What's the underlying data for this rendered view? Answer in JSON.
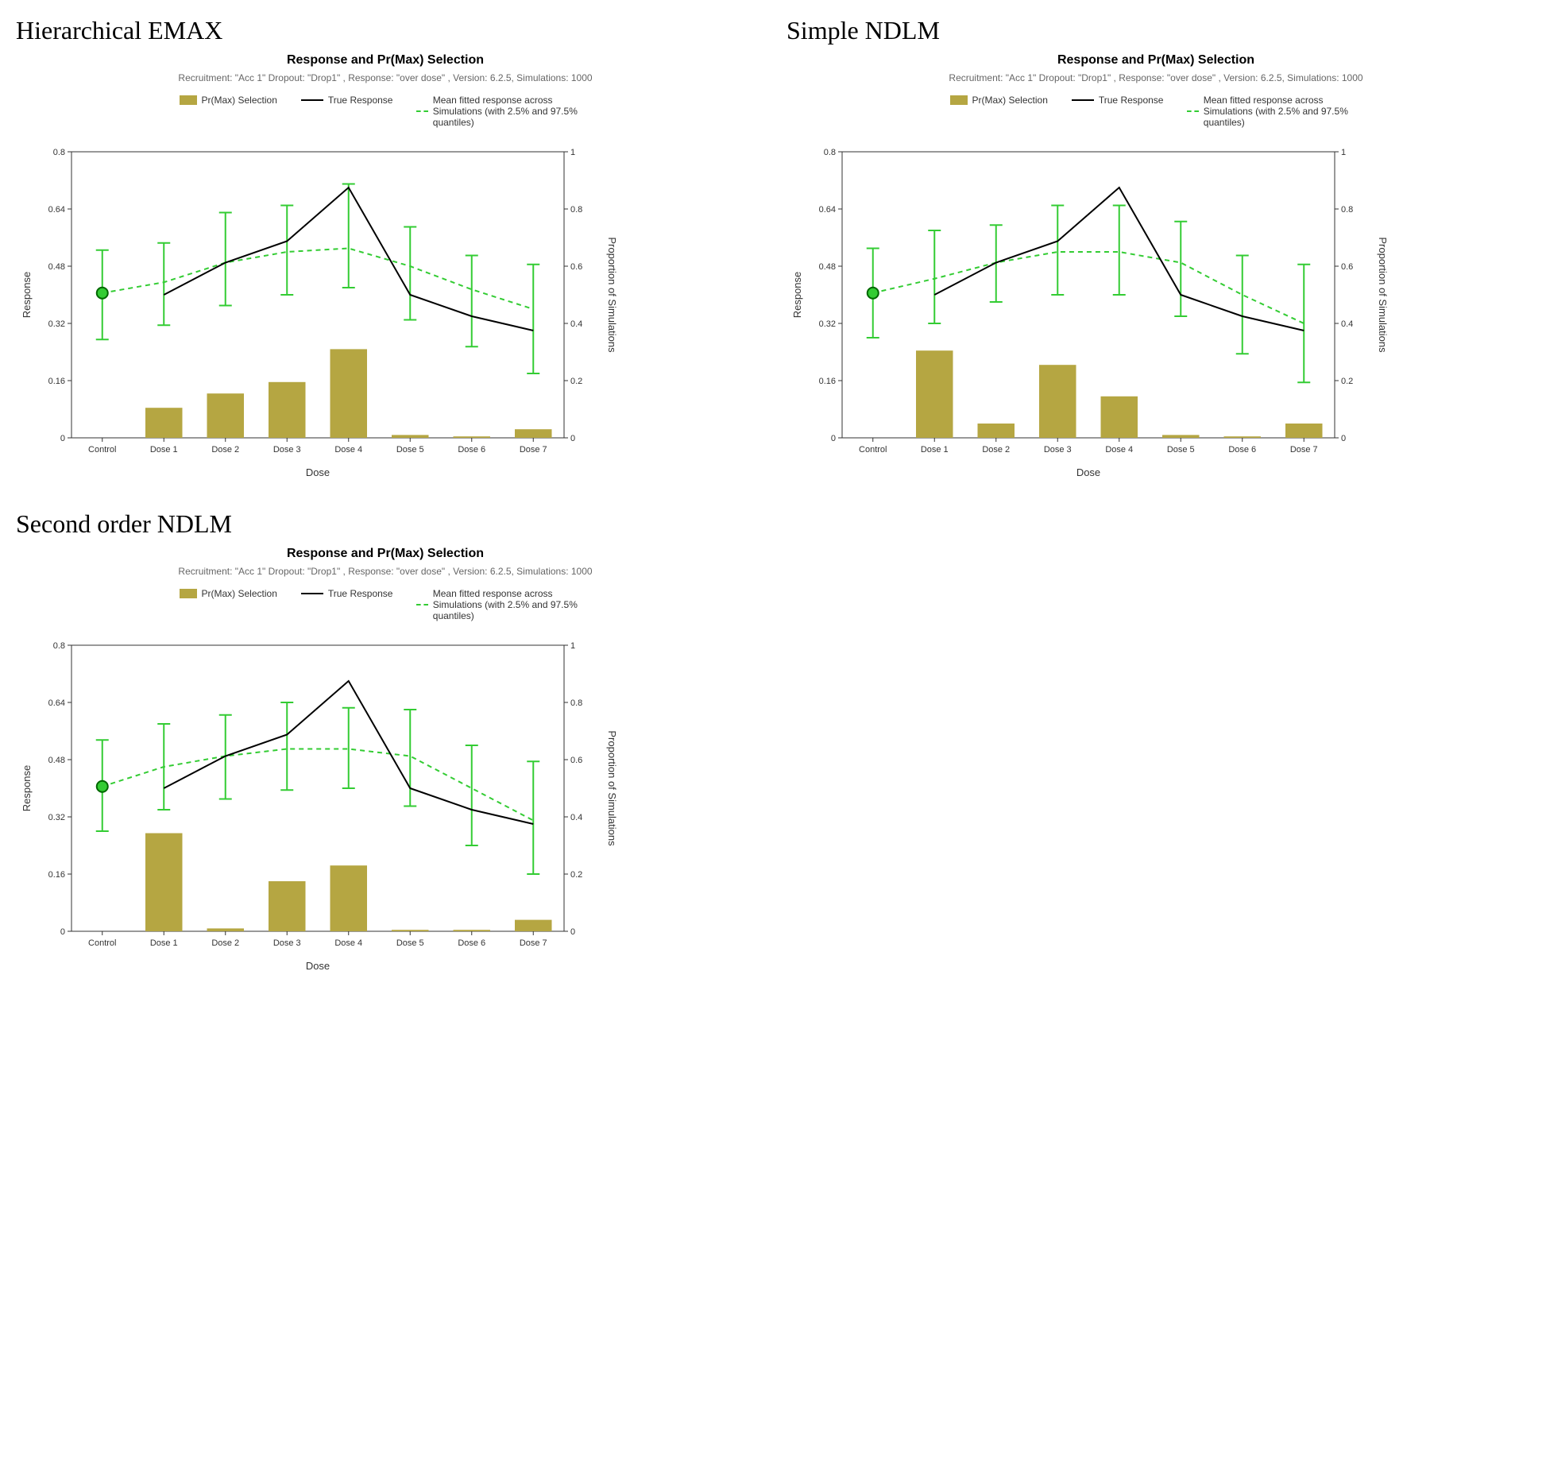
{
  "common": {
    "chart_title": "Response and Pr(Max) Selection",
    "subtitle": "Recruitment: \"Acc 1\" Dropout: \"Drop1\" , Response: \"over dose\" , Version: 6.2.5, Simulations: 1000",
    "legend": {
      "bar_label": "Pr(Max) Selection",
      "line_label": "True Response",
      "fitted_label": "Mean fitted response across Simulations (with 2.5% and 97.5% quantiles)"
    },
    "categories": [
      "Control",
      "Dose 1",
      "Dose 2",
      "Dose 3",
      "Dose 4",
      "Dose 5",
      "Dose 6",
      "Dose 7"
    ],
    "xlabel": "Dose",
    "ylabel_left": "Response",
    "ylabel_right": "Proportion of Simulations",
    "left_axis": {
      "min": 0,
      "max": 0.8,
      "ticks": [
        0,
        0.16,
        0.32,
        0.48,
        0.64,
        0.8
      ]
    },
    "right_axis": {
      "min": 0,
      "max": 1.0,
      "ticks": [
        0,
        0.2,
        0.4,
        0.6,
        0.8,
        1
      ]
    },
    "true_response": [
      null,
      0.4,
      0.49,
      0.55,
      0.7,
      0.4,
      0.34,
      0.3
    ],
    "control_point": 0.405,
    "colors": {
      "bar": "#b5a642",
      "true_line": "#000000",
      "fitted": "#33cc33",
      "control_fill": "#33cc33",
      "control_stroke": "#006600",
      "axis": "#333333",
      "grid": "#ffffff",
      "bg": "#ffffff",
      "text": "#333333",
      "subtitle": "#666666"
    },
    "fontsize": {
      "title": 16,
      "subtitle": 12,
      "legend": 12,
      "tick": 11,
      "axis_label": 13
    }
  },
  "panels": [
    {
      "id": "emax",
      "panel_title": "Hierarchical EMAX",
      "bar_values": [
        0,
        0.105,
        0.155,
        0.195,
        0.31,
        0.01,
        0.005,
        0.03
      ],
      "fitted_mean": [
        0.405,
        0.435,
        0.49,
        0.52,
        0.53,
        0.48,
        0.415,
        0.36
      ],
      "fitted_lo": [
        0.275,
        0.315,
        0.37,
        0.4,
        0.42,
        0.33,
        0.255,
        0.18
      ],
      "fitted_hi": [
        0.525,
        0.545,
        0.63,
        0.65,
        0.71,
        0.59,
        0.51,
        0.485
      ]
    },
    {
      "id": "simple",
      "panel_title": "Simple NDLM",
      "bar_values": [
        0,
        0.305,
        0.05,
        0.255,
        0.145,
        0.01,
        0.005,
        0.05
      ],
      "fitted_mean": [
        0.405,
        0.445,
        0.49,
        0.52,
        0.52,
        0.49,
        0.4,
        0.32
      ],
      "fitted_lo": [
        0.28,
        0.32,
        0.38,
        0.4,
        0.4,
        0.34,
        0.235,
        0.155
      ],
      "fitted_hi": [
        0.53,
        0.58,
        0.595,
        0.65,
        0.65,
        0.605,
        0.51,
        0.485
      ]
    },
    {
      "id": "second",
      "panel_title": "Second order NDLM",
      "bar_values": [
        0,
        0.343,
        0.01,
        0.175,
        0.23,
        0.005,
        0.005,
        0.04
      ],
      "fitted_mean": [
        0.405,
        0.46,
        0.49,
        0.51,
        0.51,
        0.49,
        0.4,
        0.31
      ],
      "fitted_lo": [
        0.28,
        0.34,
        0.37,
        0.395,
        0.4,
        0.35,
        0.24,
        0.16
      ],
      "fitted_hi": [
        0.535,
        0.58,
        0.605,
        0.64,
        0.625,
        0.62,
        0.52,
        0.475
      ]
    }
  ]
}
